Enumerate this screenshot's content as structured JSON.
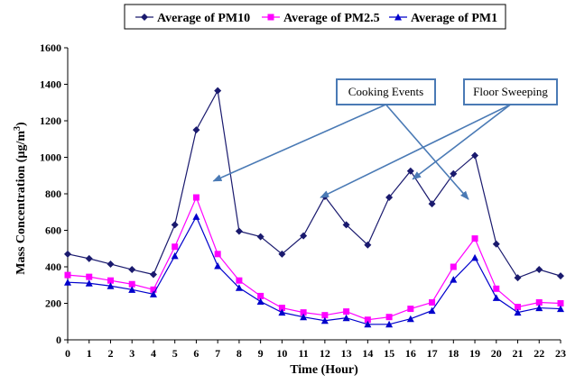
{
  "chart_data": {
    "type": "line",
    "xlabel": "Time (Hour)",
    "ylabel": "Mass Concentration (µg/m",
    "ylabel_sup": "3",
    "ylabel_end": ")",
    "ylim": [
      0,
      1600
    ],
    "yticks": [
      0,
      200,
      400,
      600,
      800,
      1000,
      1200,
      1400,
      1600
    ],
    "x": [
      0,
      1,
      2,
      3,
      4,
      5,
      6,
      7,
      8,
      9,
      10,
      11,
      12,
      13,
      14,
      15,
      16,
      17,
      18,
      19,
      20,
      21,
      22,
      23
    ],
    "grid": false,
    "legend_position": "top",
    "series": [
      {
        "name": "Average of PM10",
        "color": "#1a1a6e",
        "marker": "diamond",
        "values": [
          470,
          445,
          415,
          385,
          358,
          630,
          1150,
          1365,
          595,
          565,
          470,
          570,
          785,
          630,
          520,
          780,
          925,
          745,
          910,
          1010,
          525,
          340,
          385,
          350
        ]
      },
      {
        "name": "Average of PM2.5",
        "color": "#ff00ff",
        "marker": "square",
        "values": [
          355,
          345,
          325,
          305,
          275,
          510,
          780,
          470,
          325,
          240,
          175,
          150,
          135,
          155,
          110,
          125,
          170,
          205,
          400,
          555,
          280,
          180,
          205,
          200
        ]
      },
      {
        "name": "Average of PM1",
        "color": "#0000cc",
        "marker": "triangle",
        "values": [
          315,
          310,
          295,
          275,
          250,
          460,
          675,
          405,
          285,
          210,
          150,
          125,
          105,
          120,
          85,
          85,
          115,
          160,
          330,
          450,
          230,
          150,
          175,
          170
        ]
      }
    ],
    "annotations": [
      {
        "text": "Cooking  Events",
        "targets": [
          [
            6.8,
            870
          ],
          [
            18.7,
            770
          ]
        ]
      },
      {
        "text": "Floor Sweeping",
        "targets": [
          [
            11.8,
            780
          ],
          [
            16.1,
            880
          ]
        ]
      }
    ]
  }
}
